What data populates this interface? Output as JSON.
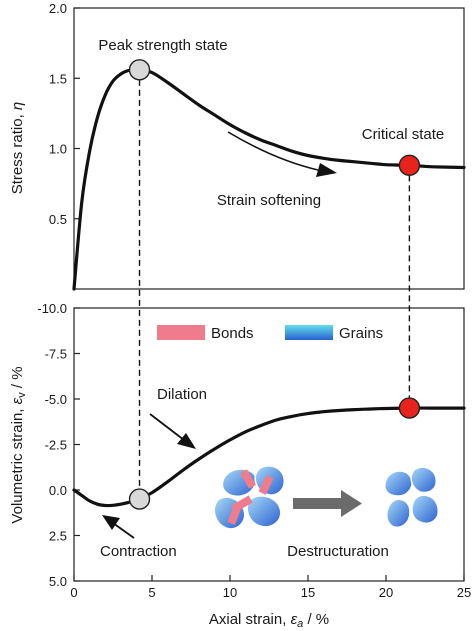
{
  "chart_data": [
    {
      "type": "line",
      "panel": "top",
      "ylabel": "Stress ratio, η",
      "ylabel_base": "Stress ratio, ",
      "ylabel_sym": "η",
      "xlim": [
        0,
        25
      ],
      "ylim": [
        0,
        2.0
      ],
      "y_ticks": [
        0.5,
        1.0,
        1.5,
        2.0
      ],
      "y_tick_labels": [
        "0.5",
        "1.0",
        "1.5",
        "2.0"
      ],
      "series": [
        {
          "x": [
            0,
            0.5,
            1,
            1.5,
            2,
            2.5,
            3,
            3.5,
            4.2,
            5,
            6,
            7,
            8,
            9,
            10,
            11,
            12,
            13,
            14,
            15,
            16,
            17,
            18,
            19,
            20,
            21.5,
            23,
            25
          ],
          "y": [
            0,
            0.62,
            0.98,
            1.22,
            1.38,
            1.48,
            1.53,
            1.555,
            1.56,
            1.54,
            1.47,
            1.39,
            1.31,
            1.24,
            1.17,
            1.11,
            1.06,
            1.02,
            0.98,
            0.95,
            0.93,
            0.915,
            0.905,
            0.895,
            0.885,
            0.88,
            0.87,
            0.865
          ]
        }
      ],
      "markers": [
        {
          "name": "Peak strength state",
          "x": 4.2,
          "y": 1.56,
          "color": "#d9d9d9"
        },
        {
          "name": "Critical state",
          "x": 21.5,
          "y": 0.88,
          "color": "#e8231c"
        }
      ],
      "annotations": [
        "Peak strength state",
        "Critical state",
        "Strain softening"
      ],
      "grid": false
    },
    {
      "type": "line",
      "panel": "bottom",
      "xlabel": "Axial strain, εa / %",
      "xlabel_base": "Axial strain, ",
      "xlabel_sym": "ε",
      "xlabel_sub": "a",
      "xlabel_unit": " / %",
      "ylabel": "Volumetric strain, εv / %",
      "ylabel_base": "Volumetric strain, ",
      "ylabel_sym": "ε",
      "ylabel_sub": "v",
      "ylabel_unit": " / %",
      "xlim": [
        0,
        25
      ],
      "ylim": [
        5.0,
        -10.0
      ],
      "x_ticks": [
        0,
        5,
        10,
        15,
        20,
        25
      ],
      "x_tick_labels": [
        "0",
        "5",
        "10",
        "15",
        "20",
        "25"
      ],
      "y_ticks": [
        -10,
        -7.5,
        -5,
        -2.5,
        0,
        2.5,
        5
      ],
      "y_tick_labels": [
        "-10.0",
        "-7.5",
        "-5.0",
        "-2.5",
        "0.0",
        "2.5",
        "5.0"
      ],
      "series": [
        {
          "x": [
            0,
            0.5,
            1,
            1.5,
            2,
            2.5,
            3,
            3.5,
            4.2,
            5,
            6,
            7,
            8,
            9,
            10,
            11,
            12,
            13,
            14,
            15,
            16,
            17,
            18,
            19,
            20,
            21.5,
            23,
            25
          ],
          "y": [
            0,
            0.3,
            0.6,
            0.78,
            0.85,
            0.84,
            0.78,
            0.68,
            0.5,
            0.15,
            -0.45,
            -1.1,
            -1.7,
            -2.25,
            -2.75,
            -3.2,
            -3.55,
            -3.85,
            -4.05,
            -4.2,
            -4.3,
            -4.37,
            -4.42,
            -4.45,
            -4.48,
            -4.5,
            -4.5,
            -4.5
          ]
        }
      ],
      "markers": [
        {
          "name": "Peak strength state",
          "x": 4.2,
          "y": 0.5,
          "color": "#d9d9d9"
        },
        {
          "name": "Critical state",
          "x": 21.5,
          "y": -4.5,
          "color": "#e8231c"
        }
      ],
      "legend": [
        {
          "name": "Bonds",
          "color": "#f07b8c"
        },
        {
          "name": "Grains",
          "colors": [
            "#4fd3e8",
            "#2f6fd8"
          ]
        }
      ],
      "legend_placement": "top",
      "annotations": [
        "Dilation",
        "Contraction",
        "Destructuration"
      ],
      "grid": false
    }
  ],
  "labels": {
    "peak_strength": "Peak strength state",
    "critical_state": "Critical state",
    "strain_softening": "Strain softening",
    "dilation": "Dilation",
    "contraction": "Contraction",
    "destructuration": "Destructuration",
    "bonds": "Bonds",
    "grains": "Grains"
  },
  "colors": {
    "curve": "#111111",
    "peak_marker": "#d9d9d9",
    "critical_marker": "#e8231c",
    "bond": "#f07b8c",
    "grain_light": "#8fd0f5",
    "grain_dark": "#2a5fcf",
    "process_arrow": "#6b6b6b"
  }
}
